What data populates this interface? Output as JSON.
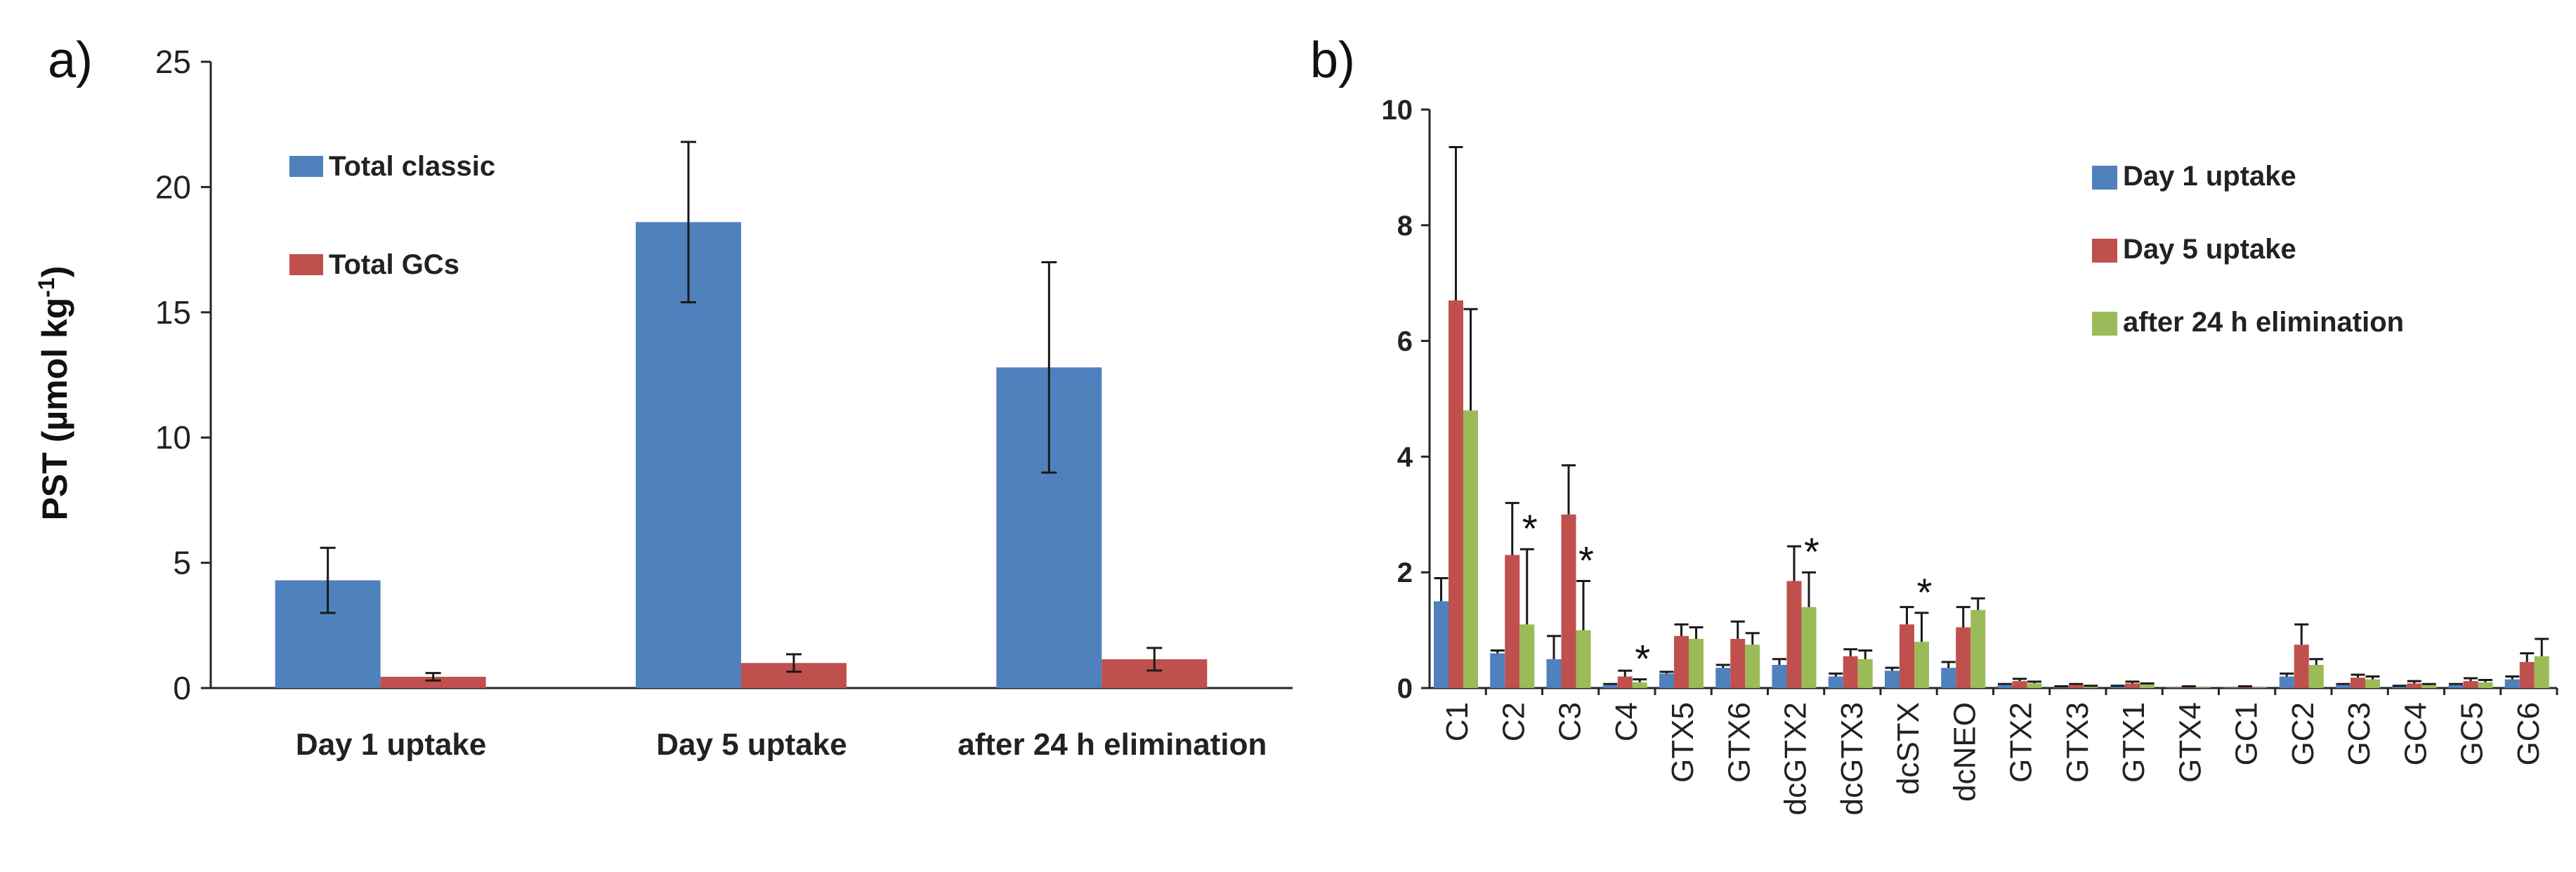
{
  "chart_data": [
    {
      "panel": "a)",
      "type": "bar",
      "ylabel": "PST (µmol kg",
      "ylabel_sup": "-1",
      "ylabel_close": ")",
      "ylim": [
        0,
        25
      ],
      "yticks": [
        "0",
        "5",
        "10",
        "15",
        "20",
        "25"
      ],
      "categories": [
        "Day 1 uptake",
        "Day 5 uptake",
        "after 24 h elimination"
      ],
      "series": [
        {
          "name": "Total classic",
          "color": "#4f81bd",
          "values": [
            4.3,
            18.6,
            12.8
          ],
          "errors": [
            1.3,
            3.2,
            4.2
          ]
        },
        {
          "name": "Total GCs",
          "color": "#c0504d",
          "values": [
            0.45,
            1.0,
            1.15
          ],
          "errors": [
            0.15,
            0.35,
            0.45
          ]
        }
      ],
      "legend": "top-left"
    },
    {
      "panel": "b)",
      "type": "bar",
      "ylim": [
        0,
        10
      ],
      "yticks": [
        "0",
        "2",
        "4",
        "6",
        "8",
        "10"
      ],
      "categories": [
        "C1",
        "C2",
        "C3",
        "C4",
        "GTX5",
        "GTX6",
        "dcGTX2",
        "dcGTX3",
        "dcSTX",
        "dcNEO",
        "GTX2",
        "GTX3",
        "GTX1",
        "GTX4",
        "GC1",
        "GC2",
        "GC3",
        "GC4",
        "GC5",
        "GC6"
      ],
      "series": [
        {
          "name": "Day 1 uptake",
          "color": "#4f81bd",
          "values": [
            1.5,
            0.6,
            0.5,
            0.05,
            0.25,
            0.35,
            0.4,
            0.2,
            0.3,
            0.35,
            0.05,
            0.02,
            0.03,
            0.01,
            0.01,
            0.2,
            0.05,
            0.03,
            0.05,
            0.15
          ],
          "errors": [
            0.4,
            0.05,
            0.4,
            0.02,
            0.03,
            0.05,
            0.1,
            0.05,
            0.05,
            0.1,
            0.02,
            0.01,
            0.01,
            0.0,
            0.0,
            0.05,
            0.02,
            0.01,
            0.02,
            0.05
          ]
        },
        {
          "name": "Day 5 uptake",
          "color": "#c0504d",
          "values": [
            6.7,
            2.3,
            3.0,
            0.2,
            0.9,
            0.85,
            1.85,
            0.55,
            1.1,
            1.05,
            0.12,
            0.05,
            0.08,
            0.02,
            0.02,
            0.75,
            0.18,
            0.08,
            0.12,
            0.45
          ],
          "errors": [
            2.65,
            0.9,
            0.85,
            0.1,
            0.2,
            0.3,
            0.6,
            0.12,
            0.3,
            0.35,
            0.04,
            0.02,
            0.03,
            0.01,
            0.01,
            0.35,
            0.05,
            0.04,
            0.05,
            0.15
          ]
        },
        {
          "name": "after 24 h elimination",
          "color": "#9bbb59",
          "values": [
            4.8,
            1.1,
            1.0,
            0.1,
            0.85,
            0.75,
            1.4,
            0.5,
            0.8,
            1.35,
            0.08,
            0.03,
            0.06,
            0.01,
            0.01,
            0.4,
            0.15,
            0.05,
            0.1,
            0.55
          ],
          "errors": [
            1.75,
            1.3,
            0.85,
            0.05,
            0.2,
            0.2,
            0.6,
            0.15,
            0.5,
            0.2,
            0.03,
            0.01,
            0.02,
            0.0,
            0.0,
            0.1,
            0.05,
            0.02,
            0.04,
            0.3
          ]
        }
      ],
      "annotations": [
        {
          "category": "C2",
          "text": "*"
        },
        {
          "category": "C3",
          "text": "*"
        },
        {
          "category": "C4",
          "text": "*"
        },
        {
          "category": "dcGTX2",
          "text": "*"
        },
        {
          "category": "dcSTX",
          "text": "*"
        }
      ],
      "legend": "top-right"
    }
  ]
}
